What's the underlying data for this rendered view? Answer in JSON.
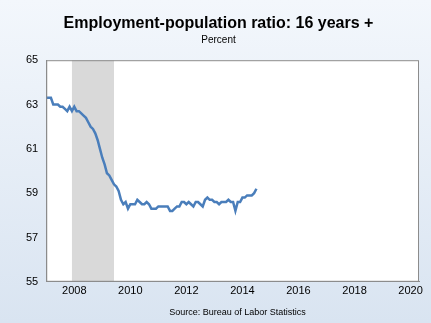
{
  "chart_data": {
    "type": "line",
    "title": "Employment-population ratio: 16 years +",
    "subtitle": "Percent",
    "source": "Source: Bureau of Labor Statistics",
    "x": [
      2007,
      2007.083,
      2007.167,
      2007.25,
      2007.333,
      2007.417,
      2007.5,
      2007.583,
      2007.667,
      2007.75,
      2007.833,
      2007.917,
      2008,
      2008.083,
      2008.167,
      2008.25,
      2008.333,
      2008.417,
      2008.5,
      2008.583,
      2008.667,
      2008.75,
      2008.833,
      2008.917,
      2009,
      2009.083,
      2009.167,
      2009.25,
      2009.333,
      2009.417,
      2009.5,
      2009.583,
      2009.667,
      2009.75,
      2009.833,
      2009.917,
      2010,
      2010.083,
      2010.167,
      2010.25,
      2010.333,
      2010.417,
      2010.5,
      2010.583,
      2010.667,
      2010.75,
      2010.833,
      2010.917,
      2011,
      2011.083,
      2011.167,
      2011.25,
      2011.333,
      2011.417,
      2011.5,
      2011.583,
      2011.667,
      2011.75,
      2011.833,
      2011.917,
      2012,
      2012.083,
      2012.167,
      2012.25,
      2012.333,
      2012.417,
      2012.5,
      2012.583,
      2012.667,
      2012.75,
      2012.833,
      2012.917,
      2013,
      2013.083,
      2013.167,
      2013.25,
      2013.333,
      2013.417,
      2013.5,
      2013.583,
      2013.667,
      2013.75,
      2013.833,
      2013.917,
      2014,
      2014.083,
      2014.167,
      2014.25,
      2014.333,
      2014.417,
      2014.5
    ],
    "values": [
      63.3,
      63.3,
      63.3,
      63.0,
      63.0,
      63.0,
      62.9,
      62.9,
      62.8,
      62.7,
      62.9,
      62.7,
      62.9,
      62.7,
      62.7,
      62.6,
      62.5,
      62.4,
      62.2,
      62.0,
      61.9,
      61.7,
      61.4,
      61.0,
      60.6,
      60.3,
      59.9,
      59.8,
      59.6,
      59.4,
      59.3,
      59.1,
      58.7,
      58.5,
      58.6,
      58.3,
      58.5,
      58.5,
      58.5,
      58.7,
      58.6,
      58.5,
      58.5,
      58.6,
      58.5,
      58.3,
      58.3,
      58.3,
      58.4,
      58.4,
      58.4,
      58.4,
      58.4,
      58.2,
      58.2,
      58.3,
      58.4,
      58.4,
      58.6,
      58.6,
      58.5,
      58.6,
      58.5,
      58.4,
      58.6,
      58.6,
      58.5,
      58.4,
      58.7,
      58.8,
      58.7,
      58.7,
      58.6,
      58.6,
      58.5,
      58.6,
      58.6,
      58.6,
      58.7,
      58.6,
      58.6,
      58.2,
      58.6,
      58.6,
      58.8,
      58.8,
      58.9,
      58.9,
      58.9,
      59.0,
      59.2
    ],
    "color": "#4a7ebb",
    "xlim": [
      2007,
      2020.3
    ],
    "xticks": [
      2008,
      2010,
      2012,
      2014,
      2016,
      2018,
      2020
    ],
    "ylim": [
      55,
      65
    ],
    "yticks": [
      55,
      57,
      59,
      61,
      63,
      65
    ],
    "grid": false,
    "shaded_x": [
      2007.917,
      2009.417
    ]
  }
}
